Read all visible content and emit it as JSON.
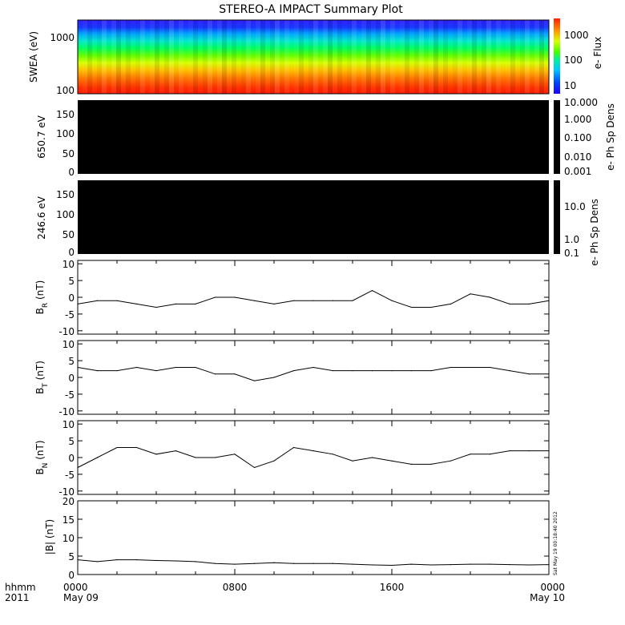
{
  "title": "STEREO-A IMPACT Summary Plot",
  "timestamp": "Sat May 19 00:18:40 2012",
  "footer": {
    "hhmm": "hhmm",
    "year": "2011",
    "x_ticks": [
      "0000",
      "0800",
      "1600",
      "0000"
    ],
    "x_dates": [
      "May 09",
      "",
      "",
      "May 10"
    ]
  },
  "chart_data": [
    {
      "id": "swea",
      "type": "heatmap",
      "ylabel": "SWEA (eV)",
      "ylim": [
        100,
        2000
      ],
      "yscale": "log",
      "yticks": [
        "1000",
        "100"
      ],
      "colorbar": {
        "label": "e- Flux",
        "ticks": [
          "1000",
          "100",
          "10"
        ],
        "range": [
          3,
          3000
        ],
        "scale": "log"
      },
      "description_rows": [
        {
          "energy_eV": 2000,
          "flux": 5
        },
        {
          "energy_eV": 1200,
          "flux": 30
        },
        {
          "energy_eV": 800,
          "flux": 100
        },
        {
          "energy_eV": 500,
          "flux": 300
        },
        {
          "energy_eV": 300,
          "flux": 700
        },
        {
          "energy_eV": 180,
          "flux": 1500
        },
        {
          "energy_eV": 100,
          "flux": 2500
        }
      ]
    },
    {
      "id": "pad650",
      "type": "heatmap",
      "ylabel": "650.7 eV",
      "ylim": [
        0,
        180
      ],
      "yticks": [
        "150",
        "100",
        "50",
        "0"
      ],
      "colorbar": {
        "label": "e- Ph Sp Dens",
        "ticks": [
          "10.000",
          "1.000",
          "0.100",
          "0.010",
          "0.001"
        ],
        "scale": "log"
      }
    },
    {
      "id": "pad246",
      "type": "heatmap",
      "ylabel": "246.6 eV",
      "ylim": [
        0,
        180
      ],
      "yticks": [
        "150",
        "100",
        "50",
        "0"
      ],
      "colorbar": {
        "label": "e- Ph Sp Dens",
        "ticks": [
          "10.0",
          "1.0",
          "0.1"
        ],
        "scale": "log"
      }
    },
    {
      "id": "br",
      "type": "line",
      "ylabel": "B",
      "ylabel_sub": "R",
      "ylabel_unit": "(nT)",
      "ylim": [
        -11,
        11
      ],
      "yticks": [
        "10",
        "5",
        "0",
        "-5",
        "-10"
      ],
      "x_hours": [
        0,
        1,
        2,
        3,
        4,
        5,
        6,
        7,
        8,
        9,
        10,
        11,
        12,
        13,
        14,
        15,
        16,
        17,
        18,
        19,
        20,
        21,
        22,
        23,
        24
      ],
      "y": [
        -2,
        -1,
        -1,
        -2,
        -3,
        -2,
        -2,
        0,
        0,
        -1,
        -2,
        -1,
        -1,
        -1,
        -1,
        2,
        -1,
        -3,
        -3,
        -2,
        1,
        0,
        -2,
        -2,
        -1
      ]
    },
    {
      "id": "bt",
      "type": "line",
      "ylabel": "B",
      "ylabel_sub": "T",
      "ylabel_unit": "(nT)",
      "ylim": [
        -11,
        11
      ],
      "yticks": [
        "10",
        "5",
        "0",
        "-5",
        "-10"
      ],
      "x_hours": [
        0,
        1,
        2,
        3,
        4,
        5,
        6,
        7,
        8,
        9,
        10,
        11,
        12,
        13,
        14,
        15,
        16,
        17,
        18,
        19,
        20,
        21,
        22,
        23,
        24
      ],
      "y": [
        3,
        2,
        2,
        3,
        2,
        3,
        3,
        1,
        1,
        -1,
        0,
        2,
        3,
        2,
        2,
        2,
        2,
        2,
        2,
        3,
        3,
        3,
        2,
        1,
        1
      ]
    },
    {
      "id": "bn",
      "type": "line",
      "ylabel": "B",
      "ylabel_sub": "N",
      "ylabel_unit": "(nT)",
      "ylim": [
        -11,
        11
      ],
      "yticks": [
        "10",
        "5",
        "0",
        "-5",
        "-10"
      ],
      "x_hours": [
        0,
        1,
        2,
        3,
        4,
        5,
        6,
        7,
        8,
        9,
        10,
        11,
        12,
        13,
        14,
        15,
        16,
        17,
        18,
        19,
        20,
        21,
        22,
        23,
        24
      ],
      "y": [
        -3,
        0,
        3,
        3,
        1,
        2,
        0,
        0,
        1,
        -3,
        -1,
        3,
        2,
        1,
        -1,
        0,
        -1,
        -2,
        -2,
        -1,
        1,
        1,
        2,
        2,
        2
      ]
    },
    {
      "id": "bmag",
      "type": "line",
      "ylabel": "|B| (nT)",
      "ylim": [
        0,
        20
      ],
      "yticks": [
        "20",
        "15",
        "10",
        "5",
        "0"
      ],
      "x_hours": [
        0,
        1,
        2,
        3,
        4,
        5,
        6,
        7,
        8,
        9,
        10,
        11,
        12,
        13,
        14,
        15,
        16,
        17,
        18,
        19,
        20,
        21,
        22,
        23,
        24
      ],
      "y": [
        4,
        3.5,
        4,
        4,
        3.8,
        3.7,
        3.5,
        3,
        2.8,
        3,
        3.2,
        3,
        3,
        3,
        2.8,
        2.6,
        2.5,
        2.8,
        2.6,
        2.7,
        2.8,
        2.8,
        2.7,
        2.6,
        2.7
      ]
    }
  ]
}
